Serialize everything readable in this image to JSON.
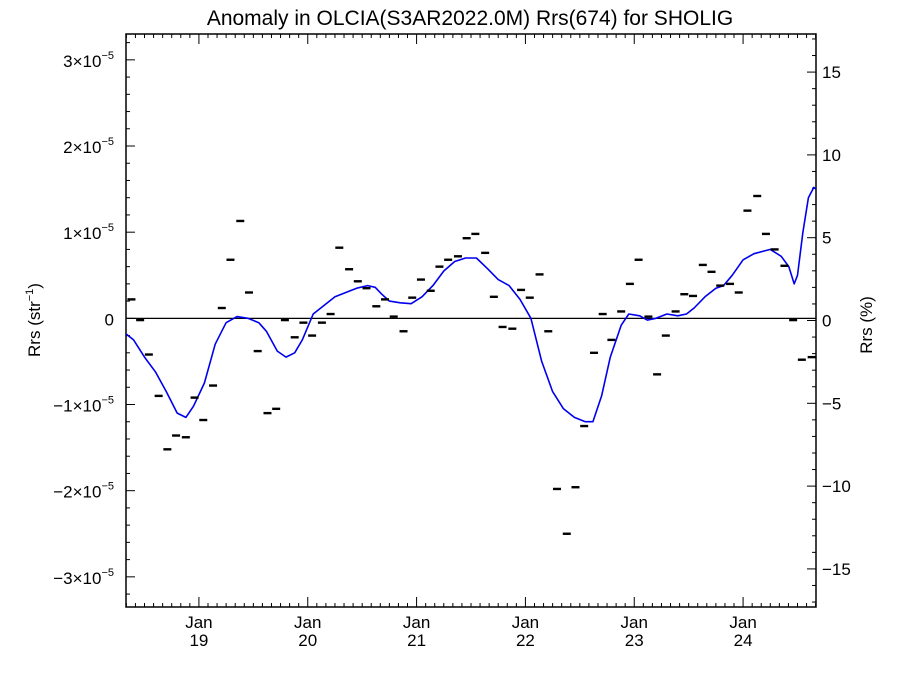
{
  "chart_data": {
    "type": "line",
    "title": "Anomaly in OLCIA(S3AR2022.0M) Rrs(674) for SHOLIG",
    "ylabel_left": {
      "base": "Rrs (str",
      "sup": "−1",
      "end": ")"
    },
    "ylabel_right": "Rrs (%)",
    "xlim": [
      2018.33,
      2024.67
    ],
    "ylim_left": [
      -3.35e-05,
      3.3e-05
    ],
    "ylim_right": [
      -17.3,
      17.3
    ],
    "zero_line": true,
    "left_ticks": [
      {
        "value": 3e-05,
        "mant": "3×10",
        "exp": "−5"
      },
      {
        "value": 2e-05,
        "mant": "2×10",
        "exp": "−5"
      },
      {
        "value": 1e-05,
        "mant": "1×10",
        "exp": "−5"
      },
      {
        "value": 0,
        "mant": "0",
        "exp": ""
      },
      {
        "value": -1e-05,
        "mant": "−1×10",
        "exp": "−5"
      },
      {
        "value": -2e-05,
        "mant": "−2×10",
        "exp": "−5"
      },
      {
        "value": -3e-05,
        "mant": "−3×10",
        "exp": "−5"
      }
    ],
    "right_ticks": [
      {
        "value": 15,
        "label": "15"
      },
      {
        "value": 10,
        "label": "10"
      },
      {
        "value": 5,
        "label": "5"
      },
      {
        "value": 0,
        "label": "0"
      },
      {
        "value": -5,
        "label": "−5"
      },
      {
        "value": -10,
        "label": "−10"
      },
      {
        "value": -15,
        "label": "−15"
      }
    ],
    "x_ticks": [
      {
        "value": 2019,
        "month": "Jan",
        "year": "19"
      },
      {
        "value": 2020,
        "month": "Jan",
        "year": "20"
      },
      {
        "value": 2021,
        "month": "Jan",
        "year": "21"
      },
      {
        "value": 2022,
        "month": "Jan",
        "year": "22"
      },
      {
        "value": 2023,
        "month": "Jan",
        "year": "23"
      },
      {
        "value": 2024,
        "month": "Jan",
        "year": "24"
      }
    ],
    "colors": {
      "smooth": "#0000ee",
      "points": "#000000",
      "axes": "#000000"
    },
    "smoothed": [
      [
        2018.33,
        -1.8e-06
      ],
      [
        2018.4,
        -2.5e-06
      ],
      [
        2018.5,
        -4.5e-06
      ],
      [
        2018.6,
        -6.2e-06
      ],
      [
        2018.7,
        -8.5e-06
      ],
      [
        2018.8,
        -1.1e-05
      ],
      [
        2018.88,
        -1.15e-05
      ],
      [
        2018.95,
        -1.02e-05
      ],
      [
        2019.05,
        -7.5e-06
      ],
      [
        2019.15,
        -3e-06
      ],
      [
        2019.25,
        -5e-07
      ],
      [
        2019.35,
        2e-07
      ],
      [
        2019.45,
        0.0
      ],
      [
        2019.55,
        -5e-07
      ],
      [
        2019.62,
        -1.5e-06
      ],
      [
        2019.72,
        -3.8e-06
      ],
      [
        2019.8,
        -4.5e-06
      ],
      [
        2019.88,
        -4e-06
      ],
      [
        2019.95,
        -2.5e-06
      ],
      [
        2020.05,
        5e-07
      ],
      [
        2020.15,
        1.5e-06
      ],
      [
        2020.25,
        2.5e-06
      ],
      [
        2020.35,
        3e-06
      ],
      [
        2020.45,
        3.5e-06
      ],
      [
        2020.55,
        3.8e-06
      ],
      [
        2020.62,
        3.6e-06
      ],
      [
        2020.68,
        2.8e-06
      ],
      [
        2020.75,
        2e-06
      ],
      [
        2020.85,
        1.8e-06
      ],
      [
        2020.95,
        1.7e-06
      ],
      [
        2021.05,
        2.5e-06
      ],
      [
        2021.15,
        3.8e-06
      ],
      [
        2021.25,
        5.5e-06
      ],
      [
        2021.35,
        6.6e-06
      ],
      [
        2021.45,
        7e-06
      ],
      [
        2021.55,
        7e-06
      ],
      [
        2021.65,
        5.8e-06
      ],
      [
        2021.75,
        4.5e-06
      ],
      [
        2021.85,
        3.8e-06
      ],
      [
        2021.95,
        2.2e-06
      ],
      [
        2022.05,
        0.0
      ],
      [
        2022.15,
        -5e-06
      ],
      [
        2022.25,
        -8.5e-06
      ],
      [
        2022.35,
        -1.05e-05
      ],
      [
        2022.45,
        -1.15e-05
      ],
      [
        2022.55,
        -1.2e-05
      ],
      [
        2022.62,
        -1.2e-05
      ],
      [
        2022.7,
        -9e-06
      ],
      [
        2022.78,
        -4.5e-06
      ],
      [
        2022.88,
        -8e-07
      ],
      [
        2022.95,
        5e-07
      ],
      [
        2023.05,
        3e-07
      ],
      [
        2023.12,
        -2e-07
      ],
      [
        2023.2,
        0.0
      ],
      [
        2023.3,
        5e-07
      ],
      [
        2023.4,
        3e-07
      ],
      [
        2023.48,
        5e-07
      ],
      [
        2023.55,
        1.2e-06
      ],
      [
        2023.65,
        2.5e-06
      ],
      [
        2023.75,
        3.5e-06
      ],
      [
        2023.82,
        3.8e-06
      ],
      [
        2023.9,
        5e-06
      ],
      [
        2024.0,
        6.8e-06
      ],
      [
        2024.1,
        7.5e-06
      ],
      [
        2024.25,
        8e-06
      ],
      [
        2024.35,
        7.2e-06
      ],
      [
        2024.42,
        6e-06
      ],
      [
        2024.47,
        4e-06
      ],
      [
        2024.5,
        5e-06
      ],
      [
        2024.55,
        1e-05
      ],
      [
        2024.6,
        1.4e-05
      ],
      [
        2024.65,
        1.52e-05
      ],
      [
        2024.67,
        1.5e-05
      ]
    ],
    "monthly": [
      [
        2018.38,
        2.2e-06
      ],
      [
        2018.46,
        -2e-07
      ],
      [
        2018.54,
        -4.2e-06
      ],
      [
        2018.63,
        -9e-06
      ],
      [
        2018.71,
        -1.52e-05
      ],
      [
        2018.79,
        -1.36e-05
      ],
      [
        2018.88,
        -1.38e-05
      ],
      [
        2018.96,
        -9.2e-06
      ],
      [
        2019.04,
        -1.18e-05
      ],
      [
        2019.13,
        -7.8e-06
      ],
      [
        2019.21,
        1.2e-06
      ],
      [
        2019.29,
        6.8e-06
      ],
      [
        2019.38,
        1.13e-05
      ],
      [
        2019.46,
        3e-06
      ],
      [
        2019.54,
        -3.8e-06
      ],
      [
        2019.63,
        -1.1e-05
      ],
      [
        2019.71,
        -1.05e-05
      ],
      [
        2019.79,
        -2e-07
      ],
      [
        2019.88,
        -2.2e-06
      ],
      [
        2019.96,
        -5e-07
      ],
      [
        2020.04,
        -2e-06
      ],
      [
        2020.13,
        -5e-07
      ],
      [
        2020.21,
        5e-07
      ],
      [
        2020.29,
        8.2e-06
      ],
      [
        2020.38,
        5.7e-06
      ],
      [
        2020.46,
        4.3e-06
      ],
      [
        2020.54,
        3.5e-06
      ],
      [
        2020.63,
        1.4e-06
      ],
      [
        2020.71,
        2.2e-06
      ],
      [
        2020.79,
        2e-07
      ],
      [
        2020.88,
        -1.5e-06
      ],
      [
        2020.96,
        2.4e-06
      ],
      [
        2021.04,
        4.5e-06
      ],
      [
        2021.13,
        3.2e-06
      ],
      [
        2021.21,
        6e-06
      ],
      [
        2021.29,
        6.8e-06
      ],
      [
        2021.38,
        7.2e-06
      ],
      [
        2021.46,
        9.3e-06
      ],
      [
        2021.54,
        9.8e-06
      ],
      [
        2021.63,
        7.6e-06
      ],
      [
        2021.71,
        2.5e-06
      ],
      [
        2021.79,
        -1e-06
      ],
      [
        2021.88,
        -1.2e-06
      ],
      [
        2021.96,
        3.3e-06
      ],
      [
        2022.04,
        2.4e-06
      ],
      [
        2022.13,
        5.1e-06
      ],
      [
        2022.21,
        -1.5e-06
      ],
      [
        2022.29,
        -1.98e-05
      ],
      [
        2022.38,
        -2.5e-05
      ],
      [
        2022.46,
        -1.96e-05
      ],
      [
        2022.54,
        -1.25e-05
      ],
      [
        2022.63,
        -4e-06
      ],
      [
        2022.71,
        5e-07
      ],
      [
        2022.79,
        -2.5e-06
      ],
      [
        2022.88,
        8e-07
      ],
      [
        2022.96,
        4e-06
      ],
      [
        2023.04,
        6.8e-06
      ],
      [
        2023.13,
        2e-07
      ],
      [
        2023.21,
        -6.5e-06
      ],
      [
        2023.29,
        -2e-06
      ],
      [
        2023.38,
        8e-07
      ],
      [
        2023.46,
        2.8e-06
      ],
      [
        2023.54,
        2.6e-06
      ],
      [
        2023.63,
        6.2e-06
      ],
      [
        2023.71,
        5.4e-06
      ],
      [
        2023.79,
        3.8e-06
      ],
      [
        2023.88,
        4e-06
      ],
      [
        2023.96,
        3e-06
      ],
      [
        2024.04,
        1.25e-05
      ],
      [
        2024.13,
        1.42e-05
      ],
      [
        2024.21,
        9.8e-06
      ],
      [
        2024.29,
        8e-06
      ],
      [
        2024.38,
        6.1e-06
      ],
      [
        2024.46,
        -2e-07
      ],
      [
        2024.54,
        -4.8e-06
      ],
      [
        2024.63,
        -4.5e-06
      ]
    ]
  }
}
